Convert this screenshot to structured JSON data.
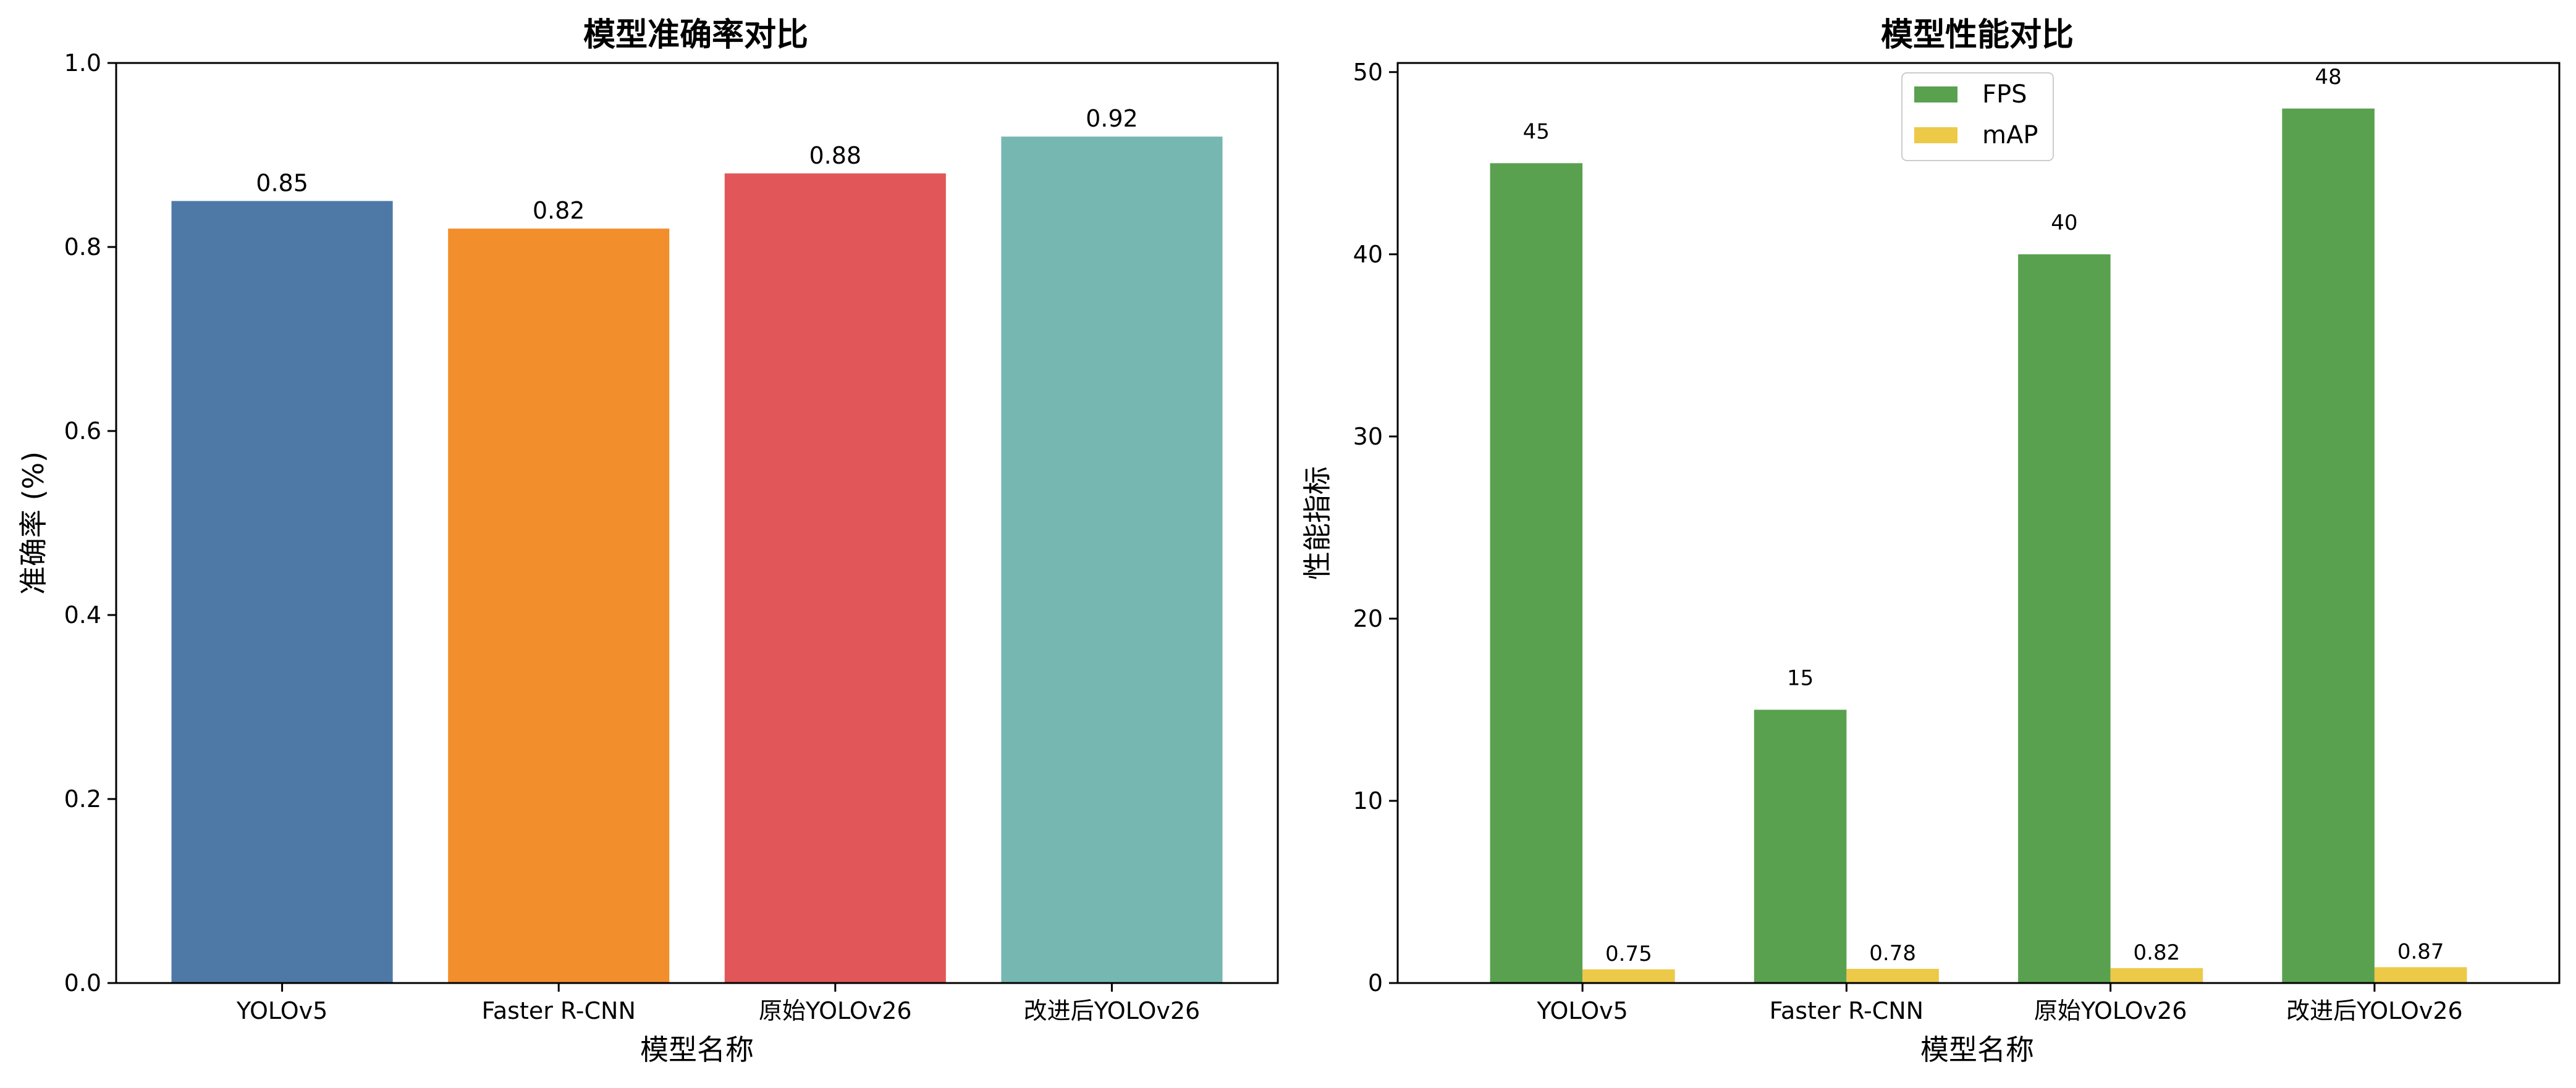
{
  "chart_data": [
    {
      "type": "bar",
      "title": "模型准确率对比",
      "xlabel": "模型名称",
      "ylabel": "准确率 (%)",
      "categories": [
        "YOLOv5",
        "Faster R-CNN",
        "原始YOLOv26",
        "改进后YOLOv26"
      ],
      "values": [
        0.85,
        0.82,
        0.88,
        0.92
      ],
      "value_labels": [
        "0.85",
        "0.82",
        "0.88",
        "0.92"
      ],
      "colors": [
        "#4e79a7",
        "#f28e2b",
        "#e15759",
        "#76b7b2"
      ],
      "ylim": [
        0,
        1.0
      ],
      "yticks": [
        0.0,
        0.2,
        0.4,
        0.6,
        0.8,
        1.0
      ],
      "ytick_labels": [
        "0.0",
        "0.2",
        "0.4",
        "0.6",
        "0.8",
        "1.0"
      ],
      "grid": false,
      "legend": null
    },
    {
      "type": "bar",
      "title": "模型性能对比",
      "xlabel": "模型名称",
      "ylabel": "性能指标",
      "categories": [
        "YOLOv5",
        "Faster R-CNN",
        "原始YOLOv26",
        "改进后YOLOv26"
      ],
      "series": [
        {
          "name": "FPS",
          "values": [
            45,
            15,
            40,
            48
          ],
          "value_labels": [
            "45",
            "15",
            "40",
            "48"
          ],
          "color": "#59a14f"
        },
        {
          "name": "mAP",
          "values": [
            0.75,
            0.78,
            0.82,
            0.87
          ],
          "value_labels": [
            "0.75",
            "0.78",
            "0.82",
            "0.87"
          ],
          "color": "#edc948"
        }
      ],
      "ylim": [
        0,
        50.5
      ],
      "yticks": [
        0,
        10,
        20,
        30,
        40,
        50
      ],
      "ytick_labels": [
        "0",
        "10",
        "20",
        "30",
        "40",
        "50"
      ],
      "grid": false,
      "legend": "upper center"
    }
  ]
}
